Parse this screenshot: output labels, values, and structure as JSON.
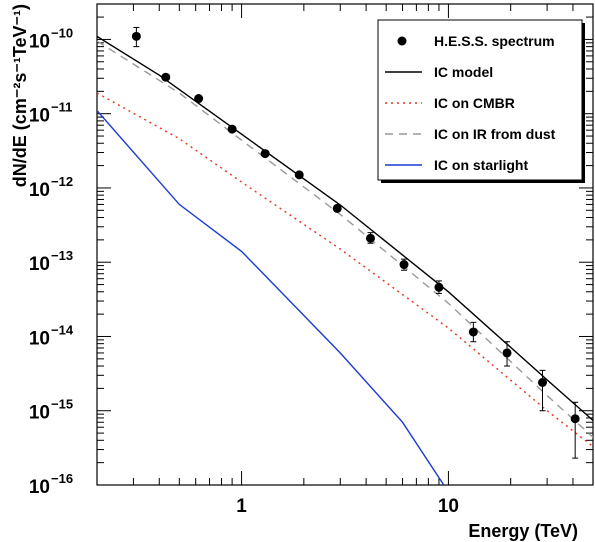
{
  "chart_data": {
    "type": "scatter",
    "xlabel": "Energy (TeV)",
    "ylabel": "dN/dE (cm⁻²s⁻¹TeV⁻¹)",
    "xscale": "log",
    "yscale": "log",
    "xlim": [
      0.2,
      50
    ],
    "ylim": [
      1e-16,
      3e-10
    ],
    "x_ticks": [
      {
        "value": 1,
        "label": "1"
      },
      {
        "value": 10,
        "label": "10"
      }
    ],
    "y_ticks": [
      {
        "value": 1e-16,
        "base": "10",
        "exp": "−16"
      },
      {
        "value": 1e-15,
        "base": "10",
        "exp": "−15"
      },
      {
        "value": 1e-14,
        "base": "10",
        "exp": "−14"
      },
      {
        "value": 1e-13,
        "base": "10",
        "exp": "−13"
      },
      {
        "value": 1e-12,
        "base": "10",
        "exp": "−12"
      },
      {
        "value": 1e-11,
        "base": "10",
        "exp": "−11"
      },
      {
        "value": 1e-10,
        "base": "10",
        "exp": "−10"
      }
    ],
    "legend_position": "top-right",
    "series": [
      {
        "name": "H.E.S.S. spectrum",
        "kind": "points",
        "color": "#000000",
        "points": [
          {
            "x": 0.31,
            "y": 1.1e-10,
            "yerr_lo": 8e-11,
            "yerr_hi": 1.45e-10
          },
          {
            "x": 0.43,
            "y": 3.1e-11
          },
          {
            "x": 0.62,
            "y": 1.6e-11
          },
          {
            "x": 0.9,
            "y": 6.2e-12
          },
          {
            "x": 1.3,
            "y": 2.9e-12
          },
          {
            "x": 1.9,
            "y": 1.5e-12
          },
          {
            "x": 2.9,
            "y": 5.3e-13
          },
          {
            "x": 4.2,
            "y": 2.1e-13,
            "yerr_lo": 1.8e-13,
            "yerr_hi": 2.5e-13
          },
          {
            "x": 6.1,
            "y": 9.3e-14,
            "yerr_lo": 7.8e-14,
            "yerr_hi": 1.1e-13
          },
          {
            "x": 9.0,
            "y": 4.6e-14,
            "yerr_lo": 3.8e-14,
            "yerr_hi": 5.6e-14
          },
          {
            "x": 13.2,
            "y": 1.15e-14,
            "yerr_lo": 8.5e-15,
            "yerr_hi": 1.55e-14
          },
          {
            "x": 19.2,
            "y": 6e-15,
            "yerr_lo": 4e-15,
            "yerr_hi": 8.5e-15
          },
          {
            "x": 28.5,
            "y": 2.4e-15,
            "yerr_lo": 1e-15,
            "yerr_hi": 3.5e-15
          },
          {
            "x": 41.0,
            "y": 7.8e-16,
            "yerr_lo": 2.3e-16,
            "yerr_hi": 1.3e-15
          }
        ]
      },
      {
        "name": "IC model",
        "kind": "line",
        "color": "#000000",
        "dash": "",
        "points": [
          [
            0.2,
            1.1e-10
          ],
          [
            0.4,
            3.3e-11
          ],
          [
            1.0,
            5.3e-12
          ],
          [
            3.0,
            5.9e-13
          ],
          [
            10.0,
            4e-14
          ],
          [
            30.0,
            2.6e-15
          ],
          [
            50.0,
            7.4e-16
          ]
        ]
      },
      {
        "name": "IC on CMBR",
        "kind": "line",
        "color": "#e8321c",
        "dash": "2,4",
        "points": [
          [
            0.2,
            1.9e-11
          ],
          [
            0.5,
            4.6e-12
          ],
          [
            1.0,
            1.2e-12
          ],
          [
            3.0,
            1.5e-13
          ],
          [
            10.0,
            1.3e-14
          ],
          [
            30.0,
            1e-15
          ],
          [
            50.0,
            3.3e-16
          ]
        ]
      },
      {
        "name": "IC on IR from dust",
        "kind": "line",
        "color": "#9a9a9a",
        "dash": "8,6",
        "points": [
          [
            0.2,
            9.5e-11
          ],
          [
            0.5,
            1.9e-11
          ],
          [
            1.0,
            4.4e-12
          ],
          [
            3.0,
            4.4e-13
          ],
          [
            10.0,
            2.8e-14
          ],
          [
            30.0,
            1.6e-15
          ],
          [
            50.0,
            4.4e-16
          ]
        ]
      },
      {
        "name": "IC on starlight",
        "kind": "line",
        "color": "#1a3bd0",
        "dash": "",
        "points": [
          [
            0.2,
            1.1e-11
          ],
          [
            0.5,
            6e-13
          ],
          [
            1.0,
            1.4e-13
          ],
          [
            3.0,
            6e-15
          ],
          [
            6.0,
            7e-16
          ],
          [
            9.5,
            1e-16
          ]
        ]
      }
    ]
  }
}
